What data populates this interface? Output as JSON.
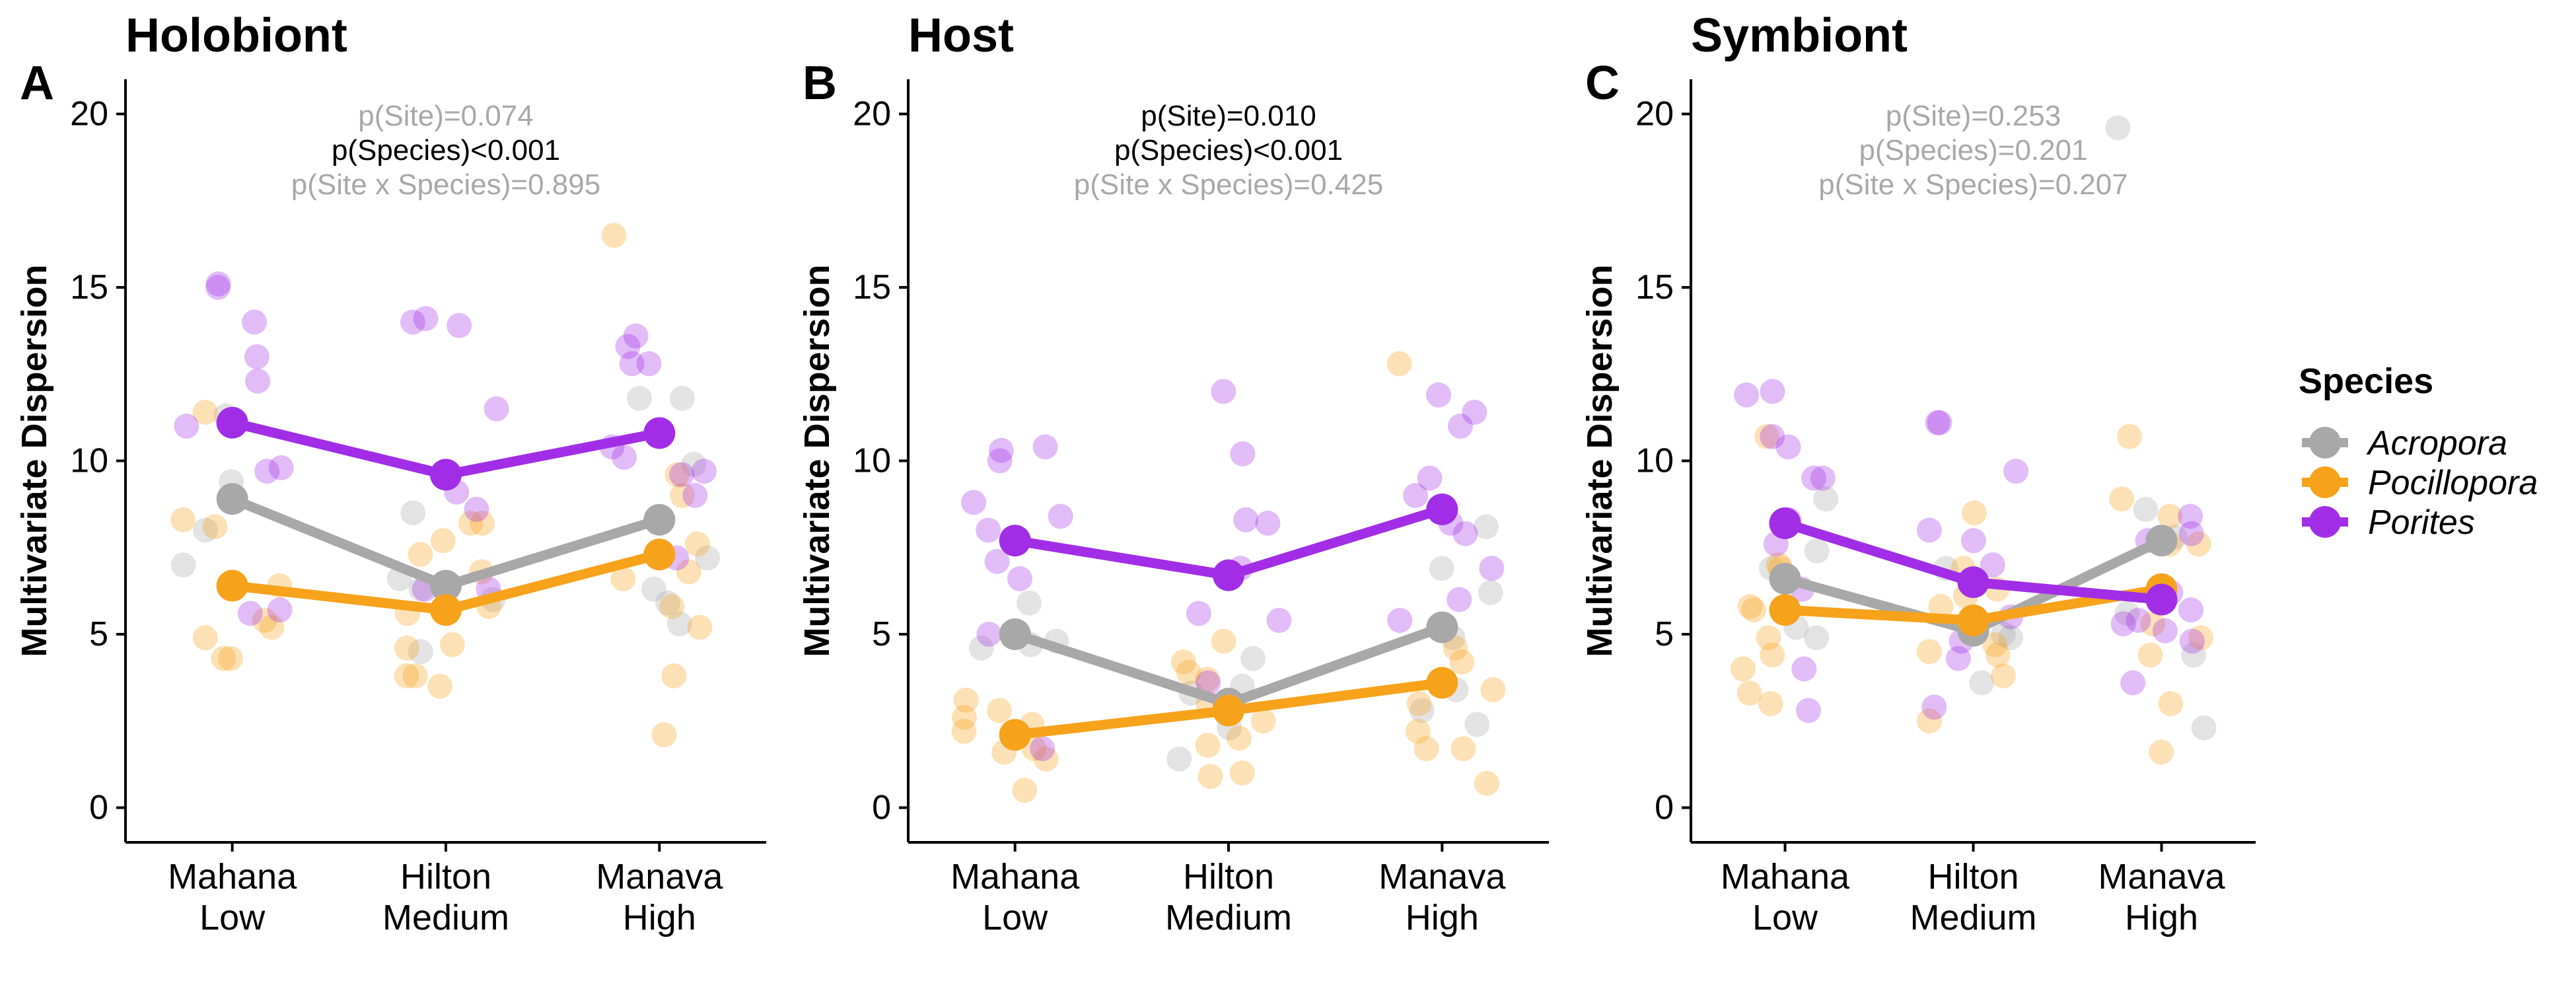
{
  "legend": {
    "title": "Species",
    "items": [
      {
        "label": "Acropora",
        "color": "#a8a8a8"
      },
      {
        "label": "Pocillopora",
        "color": "#f7a21b"
      },
      {
        "label": "Porites",
        "color": "#a12ee6"
      }
    ]
  },
  "chart_data": [
    {
      "type": "scatter",
      "panel_letter": "A",
      "title": "Holobiont",
      "ylabel": "Multivariate Dispersion",
      "xlabel": "",
      "categories": [
        "Mahana\nLow",
        "Hilton\nMedium",
        "Manava\nHigh"
      ],
      "yticks": [
        0,
        5,
        10,
        15,
        20
      ],
      "ylim": [
        -1,
        21
      ],
      "grid": false,
      "annotations": [
        {
          "text": "p(Site)=0.074",
          "significant": false
        },
        {
          "text": "p(Species)<0.001",
          "significant": true
        },
        {
          "text": "p(Site x Species)=0.895",
          "significant": false
        }
      ],
      "series": [
        {
          "name": "Acropora",
          "color": "#a8a8a8",
          "means": [
            8.9,
            6.4,
            8.3
          ],
          "points": [
            [
              0,
              11.3
            ],
            [
              0,
              9.4
            ],
            [
              0,
              8.0
            ],
            [
              0,
              7.0
            ],
            [
              1,
              8.5
            ],
            [
              1,
              6.6
            ],
            [
              1,
              6.0
            ],
            [
              1,
              4.5
            ],
            [
              1,
              6.3
            ],
            [
              2,
              11.8
            ],
            [
              2,
              11.8
            ],
            [
              2,
              9.9
            ],
            [
              2,
              7.2
            ],
            [
              2,
              6.3
            ],
            [
              2,
              5.9
            ],
            [
              2,
              5.3
            ]
          ]
        },
        {
          "name": "Pocillopora",
          "color": "#f7a21b",
          "means": [
            6.4,
            5.7,
            7.3
          ],
          "points": [
            [
              0,
              11.4
            ],
            [
              0,
              8.1
            ],
            [
              0,
              8.3
            ],
            [
              0,
              6.4
            ],
            [
              0,
              5.4
            ],
            [
              0,
              4.9
            ],
            [
              0,
              5.2
            ],
            [
              0,
              4.3
            ],
            [
              0,
              4.3
            ],
            [
              1,
              8.2
            ],
            [
              1,
              8.2
            ],
            [
              1,
              7.7
            ],
            [
              1,
              7.3
            ],
            [
              1,
              6.8
            ],
            [
              1,
              5.8
            ],
            [
              1,
              5.6
            ],
            [
              1,
              4.6
            ],
            [
              1,
              4.7
            ],
            [
              1,
              3.8
            ],
            [
              1,
              3.5
            ],
            [
              1,
              3.8
            ],
            [
              2,
              16.5
            ],
            [
              2,
              9.6
            ],
            [
              2,
              9.0
            ],
            [
              2,
              7.6
            ],
            [
              2,
              6.8
            ],
            [
              2,
              6.6
            ],
            [
              2,
              5.8
            ],
            [
              2,
              5.2
            ],
            [
              2,
              3.8
            ],
            [
              2,
              2.1
            ]
          ]
        },
        {
          "name": "Porites",
          "color": "#a12ee6",
          "means": [
            11.1,
            9.6,
            10.8
          ],
          "points": [
            [
              0,
              15.1
            ],
            [
              0,
              15.0
            ],
            [
              0,
              14.0
            ],
            [
              0,
              13.0
            ],
            [
              0,
              12.3
            ],
            [
              0,
              11.0
            ],
            [
              0,
              9.8
            ],
            [
              0,
              9.7
            ],
            [
              0,
              5.7
            ],
            [
              0,
              5.6
            ],
            [
              1,
              14.1
            ],
            [
              1,
              14.0
            ],
            [
              1,
              13.9
            ],
            [
              1,
              11.5
            ],
            [
              1,
              9.1
            ],
            [
              1,
              8.6
            ],
            [
              1,
              6.3
            ],
            [
              1,
              6.3
            ],
            [
              2,
              13.6
            ],
            [
              2,
              13.3
            ],
            [
              2,
              12.8
            ],
            [
              2,
              12.8
            ],
            [
              2,
              10.4
            ],
            [
              2,
              10.1
            ],
            [
              2,
              9.7
            ],
            [
              2,
              9.6
            ],
            [
              2,
              9.0
            ],
            [
              2,
              7.2
            ]
          ]
        }
      ]
    },
    {
      "type": "scatter",
      "panel_letter": "B",
      "title": "Host",
      "ylabel": "Multivariate Dispersion",
      "xlabel": "",
      "categories": [
        "Mahana\nLow",
        "Hilton\nMedium",
        "Manava\nHigh"
      ],
      "yticks": [
        0,
        5,
        10,
        15,
        20
      ],
      "ylim": [
        -1,
        21
      ],
      "grid": false,
      "annotations": [
        {
          "text": "p(Site)=0.010",
          "significant": true
        },
        {
          "text": "p(Species)<0.001",
          "significant": true
        },
        {
          "text": "p(Site x Species)=0.425",
          "significant": false
        }
      ],
      "series": [
        {
          "name": "Acropora",
          "color": "#a8a8a8",
          "means": [
            5.0,
            3.0,
            5.2
          ],
          "points": [
            [
              0,
              5.9
            ],
            [
              0,
              4.8
            ],
            [
              0,
              4.7
            ],
            [
              0,
              4.6
            ],
            [
              1,
              4.3
            ],
            [
              1,
              3.5
            ],
            [
              1,
              3.3
            ],
            [
              1,
              2.3
            ],
            [
              1,
              1.4
            ],
            [
              2,
              8.1
            ],
            [
              2,
              6.9
            ],
            [
              2,
              6.2
            ],
            [
              2,
              4.9
            ],
            [
              2,
              3.4
            ],
            [
              2,
              2.8
            ],
            [
              2,
              2.4
            ]
          ]
        },
        {
          "name": "Pocillopora",
          "color": "#f7a21b",
          "means": [
            2.1,
            2.8,
            3.6
          ],
          "points": [
            [
              0,
              3.1
            ],
            [
              0,
              2.8
            ],
            [
              0,
              2.6
            ],
            [
              0,
              2.4
            ],
            [
              0,
              2.2
            ],
            [
              0,
              1.7
            ],
            [
              0,
              1.6
            ],
            [
              0,
              1.4
            ],
            [
              0,
              0.5
            ],
            [
              1,
              4.8
            ],
            [
              1,
              4.2
            ],
            [
              1,
              3.9
            ],
            [
              1,
              3.7
            ],
            [
              1,
              3.0
            ],
            [
              1,
              2.5
            ],
            [
              1,
              2.0
            ],
            [
              1,
              1.8
            ],
            [
              1,
              1.0
            ],
            [
              1,
              0.9
            ],
            [
              2,
              12.8
            ],
            [
              2,
              4.6
            ],
            [
              2,
              4.2
            ],
            [
              2,
              3.4
            ],
            [
              2,
              3.0
            ],
            [
              2,
              2.2
            ],
            [
              2,
              1.7
            ],
            [
              2,
              1.7
            ],
            [
              2,
              0.7
            ]
          ]
        },
        {
          "name": "Porites",
          "color": "#a12ee6",
          "means": [
            7.7,
            6.7,
            8.6
          ],
          "points": [
            [
              0,
              10.4
            ],
            [
              0,
              10.3
            ],
            [
              0,
              10.0
            ],
            [
              0,
              8.8
            ],
            [
              0,
              8.4
            ],
            [
              0,
              8.0
            ],
            [
              0,
              7.1
            ],
            [
              0,
              6.6
            ],
            [
              0,
              5.0
            ],
            [
              0,
              1.7
            ],
            [
              1,
              12.0
            ],
            [
              1,
              10.2
            ],
            [
              1,
              8.3
            ],
            [
              1,
              8.2
            ],
            [
              1,
              6.9
            ],
            [
              1,
              5.6
            ],
            [
              1,
              5.4
            ],
            [
              1,
              3.6
            ],
            [
              2,
              11.9
            ],
            [
              2,
              11.4
            ],
            [
              2,
              11.0
            ],
            [
              2,
              9.5
            ],
            [
              2,
              9.0
            ],
            [
              2,
              8.2
            ],
            [
              2,
              7.9
            ],
            [
              2,
              6.9
            ],
            [
              2,
              6.0
            ],
            [
              2,
              5.4
            ]
          ]
        }
      ]
    },
    {
      "type": "scatter",
      "panel_letter": "C",
      "title": "Symbiont",
      "ylabel": "Multivariate Dispersion",
      "xlabel": "",
      "categories": [
        "Mahana\nLow",
        "Hilton\nMedium",
        "Manava\nHigh"
      ],
      "yticks": [
        0,
        5,
        10,
        15,
        20
      ],
      "ylim": [
        -1,
        21
      ],
      "grid": false,
      "annotations": [
        {
          "text": "p(Site)=0.253",
          "significant": false
        },
        {
          "text": "p(Species)=0.201",
          "significant": false
        },
        {
          "text": "p(Site x Species)=0.207",
          "significant": false
        }
      ],
      "series": [
        {
          "name": "Acropora",
          "color": "#a8a8a8",
          "means": [
            6.6,
            5.1,
            7.7
          ],
          "points": [
            [
              0,
              8.9
            ],
            [
              0,
              7.4
            ],
            [
              0,
              6.9
            ],
            [
              0,
              5.2
            ],
            [
              0,
              4.9
            ],
            [
              1,
              6.9
            ],
            [
              1,
              5.0
            ],
            [
              1,
              4.9
            ],
            [
              1,
              3.6
            ],
            [
              2,
              19.6
            ],
            [
              2,
              8.6
            ],
            [
              2,
              7.8
            ],
            [
              2,
              5.6
            ],
            [
              2,
              4.4
            ],
            [
              2,
              2.3
            ]
          ]
        },
        {
          "name": "Pocillopora",
          "color": "#f7a21b",
          "means": [
            5.7,
            5.4,
            6.3
          ],
          "points": [
            [
              0,
              10.7
            ],
            [
              0,
              7.0
            ],
            [
              0,
              6.9
            ],
            [
              0,
              5.8
            ],
            [
              0,
              5.7
            ],
            [
              0,
              4.9
            ],
            [
              0,
              4.4
            ],
            [
              0,
              4.0
            ],
            [
              0,
              3.3
            ],
            [
              0,
              3.0
            ],
            [
              1,
              8.5
            ],
            [
              1,
              6.9
            ],
            [
              1,
              6.3
            ],
            [
              1,
              6.1
            ],
            [
              1,
              5.8
            ],
            [
              1,
              4.7
            ],
            [
              1,
              4.5
            ],
            [
              1,
              4.4
            ],
            [
              1,
              3.8
            ],
            [
              1,
              2.5
            ],
            [
              2,
              10.7
            ],
            [
              2,
              8.9
            ],
            [
              2,
              8.4
            ],
            [
              2,
              7.6
            ],
            [
              2,
              7.6
            ],
            [
              2,
              5.3
            ],
            [
              2,
              4.9
            ],
            [
              2,
              4.4
            ],
            [
              2,
              3.0
            ],
            [
              2,
              1.6
            ]
          ]
        },
        {
          "name": "Porites",
          "color": "#a12ee6",
          "means": [
            8.2,
            6.5,
            6.0
          ],
          "points": [
            [
              0,
              12.0
            ],
            [
              0,
              11.9
            ],
            [
              0,
              10.7
            ],
            [
              0,
              10.4
            ],
            [
              0,
              9.5
            ],
            [
              0,
              9.5
            ],
            [
              0,
              8.3
            ],
            [
              0,
              7.6
            ],
            [
              0,
              6.3
            ],
            [
              0,
              4.0
            ],
            [
              0,
              2.8
            ],
            [
              1,
              11.1
            ],
            [
              1,
              11.1
            ],
            [
              1,
              9.7
            ],
            [
              1,
              8.0
            ],
            [
              1,
              7.7
            ],
            [
              1,
              7.0
            ],
            [
              1,
              5.5
            ],
            [
              1,
              4.8
            ],
            [
              1,
              4.3
            ],
            [
              1,
              2.9
            ],
            [
              2,
              8.4
            ],
            [
              2,
              7.9
            ],
            [
              2,
              7.7
            ],
            [
              2,
              6.2
            ],
            [
              2,
              5.7
            ],
            [
              2,
              5.4
            ],
            [
              2,
              5.3
            ],
            [
              2,
              5.1
            ],
            [
              2,
              4.8
            ],
            [
              2,
              3.6
            ]
          ]
        }
      ]
    }
  ]
}
